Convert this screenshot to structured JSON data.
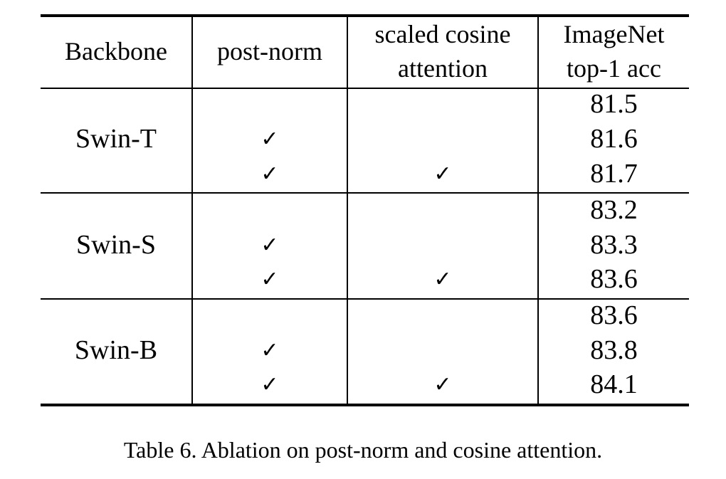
{
  "table": {
    "headers": {
      "backbone": "Backbone",
      "post_norm": "post-norm",
      "scaled_cosine_line1": "scaled cosine",
      "scaled_cosine_line2": "attention",
      "imagenet_line1": "ImageNet",
      "imagenet_line2": "top-1 acc"
    },
    "check_glyph": "✓",
    "groups": [
      {
        "backbone": "Swin-T",
        "rows": [
          {
            "post_norm": false,
            "scaled_cosine": false,
            "acc": "81.5"
          },
          {
            "post_norm": true,
            "scaled_cosine": false,
            "acc": "81.6"
          },
          {
            "post_norm": true,
            "scaled_cosine": true,
            "acc": "81.7"
          }
        ]
      },
      {
        "backbone": "Swin-S",
        "rows": [
          {
            "post_norm": false,
            "scaled_cosine": false,
            "acc": "83.2"
          },
          {
            "post_norm": true,
            "scaled_cosine": false,
            "acc": "83.3"
          },
          {
            "post_norm": true,
            "scaled_cosine": true,
            "acc": "83.6"
          }
        ]
      },
      {
        "backbone": "Swin-B",
        "rows": [
          {
            "post_norm": false,
            "scaled_cosine": false,
            "acc": "83.6"
          },
          {
            "post_norm": true,
            "scaled_cosine": false,
            "acc": "83.8"
          },
          {
            "post_norm": true,
            "scaled_cosine": true,
            "acc": "84.1"
          }
        ]
      }
    ]
  },
  "caption": "Table 6. Ablation on post-norm and cosine attention."
}
